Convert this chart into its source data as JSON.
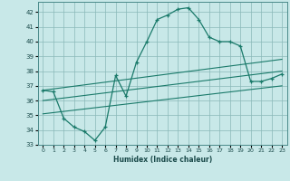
{
  "title": "",
  "xlabel": "Humidex (Indice chaleur)",
  "background_color": "#c8e8e8",
  "line_color": "#1a7a6a",
  "grid_color": "#8ab8b8",
  "xlim": [
    -0.5,
    23.5
  ],
  "ylim": [
    33,
    42.7
  ],
  "yticks": [
    33,
    34,
    35,
    36,
    37,
    38,
    39,
    40,
    41,
    42
  ],
  "xticks": [
    0,
    1,
    2,
    3,
    4,
    5,
    6,
    7,
    8,
    9,
    10,
    11,
    12,
    13,
    14,
    15,
    16,
    17,
    18,
    19,
    20,
    21,
    22,
    23
  ],
  "curve1_x": [
    0,
    1,
    2,
    3,
    4,
    5,
    6,
    7,
    8,
    9,
    10,
    11,
    12,
    13,
    14,
    15,
    16,
    17,
    18,
    19,
    20,
    21,
    22,
    23
  ],
  "curve1_y": [
    36.7,
    36.6,
    34.8,
    34.2,
    33.9,
    33.3,
    34.2,
    37.7,
    36.3,
    38.6,
    40.0,
    41.5,
    41.8,
    42.2,
    42.3,
    41.5,
    40.3,
    40.0,
    40.0,
    39.7,
    37.3,
    37.3,
    37.5,
    37.8
  ],
  "trend1_x": [
    0,
    23
  ],
  "trend1_y": [
    36.7,
    38.8
  ],
  "trend2_x": [
    0,
    23
  ],
  "trend2_y": [
    36.0,
    38.0
  ],
  "trend3_x": [
    0,
    23
  ],
  "trend3_y": [
    35.1,
    37.0
  ]
}
